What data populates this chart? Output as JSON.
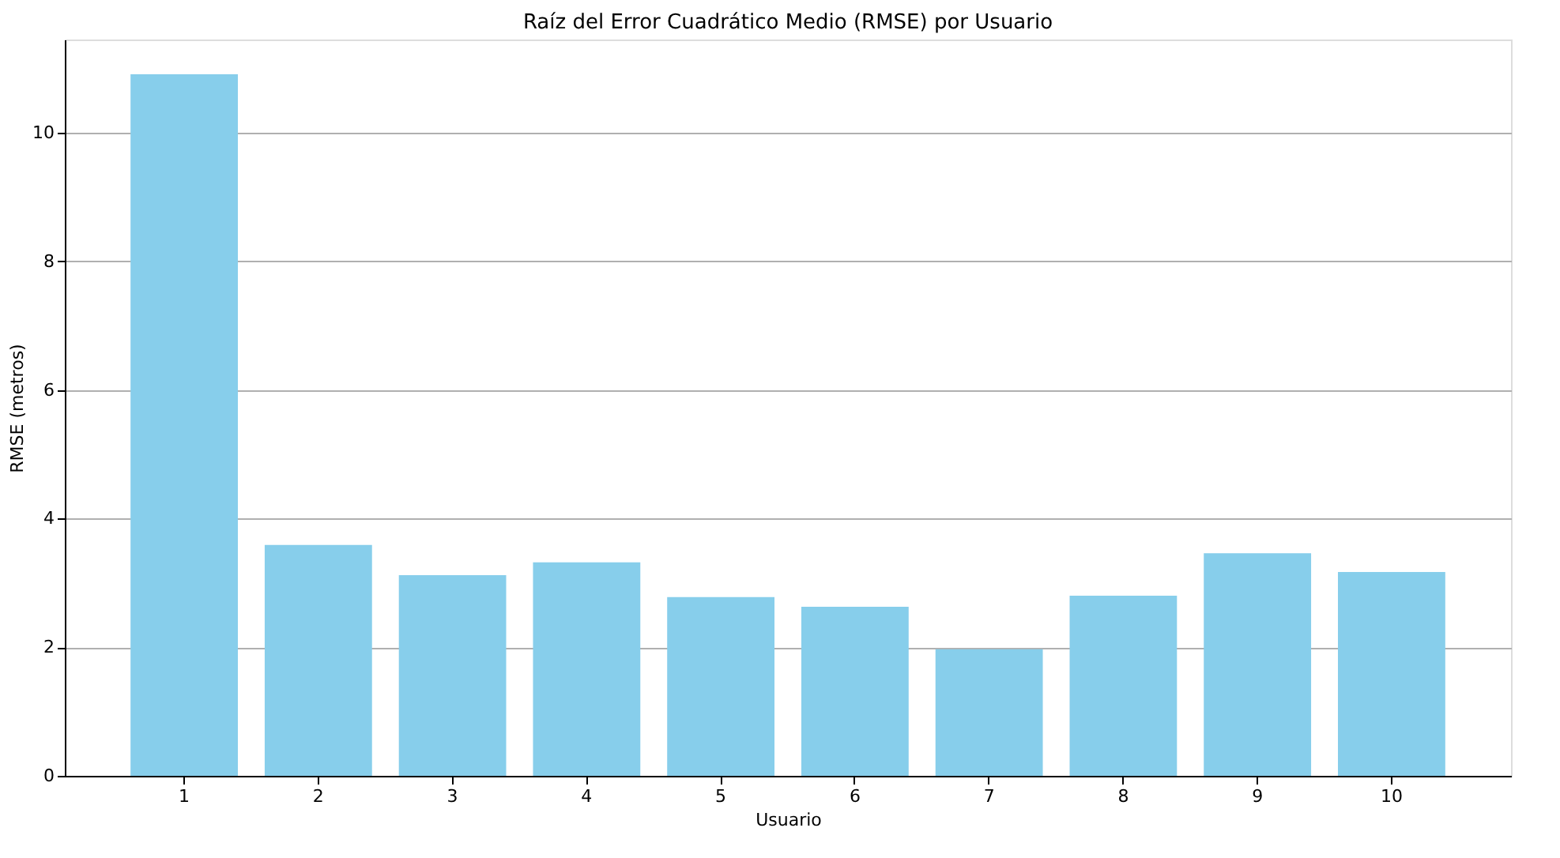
{
  "chart_data": {
    "type": "bar",
    "title": "Raíz del Error Cuadrático Medio (RMSE) por Usuario",
    "xlabel": "Usuario",
    "ylabel": "RMSE (metros)",
    "categories": [
      "1",
      "2",
      "3",
      "4",
      "5",
      "6",
      "7",
      "8",
      "9",
      "10"
    ],
    "values": [
      10.91,
      3.59,
      3.12,
      3.32,
      2.78,
      2.63,
      1.97,
      2.8,
      3.46,
      3.17
    ],
    "color": "#87ceeb",
    "ylim": [
      0,
      11.45
    ],
    "yticks": [
      0,
      2,
      4,
      6,
      8,
      10
    ],
    "grid": "y"
  }
}
